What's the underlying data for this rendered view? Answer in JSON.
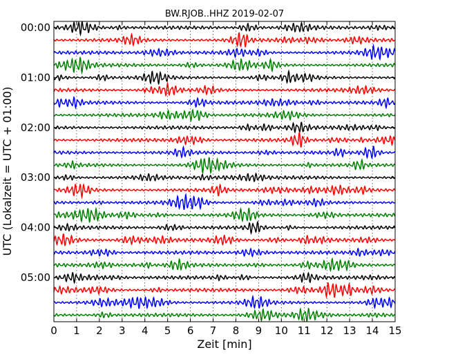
{
  "chart_data": {
    "type": "line",
    "title": "BW.RJOB..HHZ 2019-02-07",
    "xlabel": "Zeit  [min]",
    "ylabel": "UTC (Lokalzeit = UTC + 01:00)",
    "xlim": [
      0,
      15
    ],
    "x_ticks": [
      0,
      1,
      2,
      3,
      4,
      5,
      6,
      7,
      8,
      9,
      10,
      11,
      12,
      13,
      14,
      15
    ],
    "y_tick_labels": [
      "00:00",
      "01:00",
      "02:00",
      "03:00",
      "04:00",
      "05:00"
    ],
    "traces_per_hour": 4,
    "trace_count": 24,
    "trace_minutes": 15,
    "colors": [
      "#000000",
      "#ff0000",
      "#0000ff",
      "#008000"
    ],
    "vertical_grid": "dotted",
    "legend": "none"
  }
}
